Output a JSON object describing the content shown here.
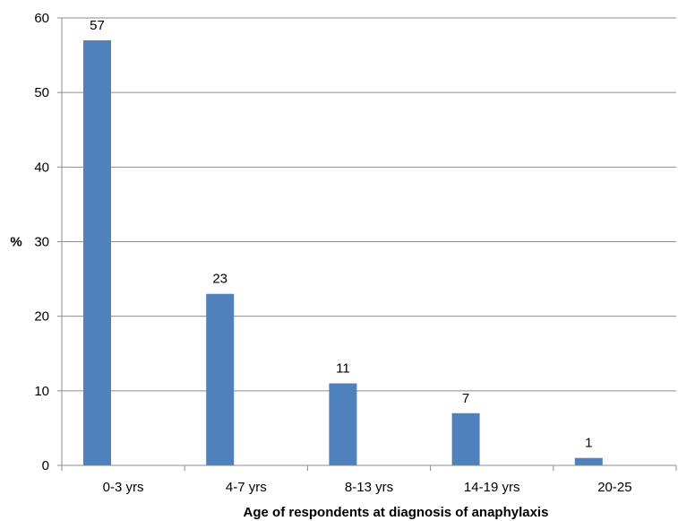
{
  "chart_data": {
    "type": "bar",
    "categories": [
      "0-3 yrs",
      "4-7 yrs",
      "8-13 yrs",
      "14-19 yrs",
      "20-25"
    ],
    "values": [
      57,
      23,
      11,
      7,
      1
    ],
    "data_labels": [
      "57",
      "23",
      "11",
      "7",
      "1"
    ],
    "title": "",
    "xlabel": "Age of respondents at diagnosis of anaphylaxis",
    "ylabel": "%",
    "ylim": [
      0,
      60
    ],
    "yticks": [
      "0",
      "10",
      "20",
      "30",
      "40",
      "50",
      "60"
    ],
    "grid": true,
    "legend": "none",
    "bar_color": "#4F81BD"
  }
}
